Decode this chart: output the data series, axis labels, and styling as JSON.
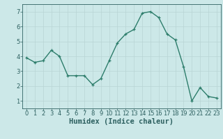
{
  "x": [
    0,
    1,
    2,
    3,
    4,
    5,
    6,
    7,
    8,
    9,
    10,
    11,
    12,
    13,
    14,
    15,
    16,
    17,
    18,
    19,
    20,
    21,
    22,
    23
  ],
  "y": [
    3.9,
    3.6,
    3.7,
    4.4,
    4.0,
    2.7,
    2.7,
    2.7,
    2.1,
    2.5,
    3.7,
    4.9,
    5.5,
    5.8,
    6.9,
    7.0,
    6.6,
    5.5,
    5.1,
    3.3,
    1.0,
    1.9,
    1.3,
    1.2
  ],
  "line_color": "#2d7d6b",
  "marker": "+",
  "bg_color": "#cce8e8",
  "grid_color": "#b8d4d4",
  "grid_minor_color": "#c8e0e0",
  "xlabel": "Humidex (Indice chaleur)",
  "xlim": [
    -0.5,
    23.5
  ],
  "ylim": [
    0.5,
    7.5
  ],
  "yticks": [
    1,
    2,
    3,
    4,
    5,
    6,
    7
  ],
  "xticks": [
    0,
    1,
    2,
    3,
    4,
    5,
    6,
    7,
    8,
    9,
    10,
    11,
    12,
    13,
    14,
    15,
    16,
    17,
    18,
    19,
    20,
    21,
    22,
    23
  ],
  "axis_color": "#2d6060",
  "tick_font_size": 6.0,
  "label_font_size": 7.5,
  "linewidth": 1.0,
  "markersize": 3.5,
  "markeredgewidth": 0.9
}
